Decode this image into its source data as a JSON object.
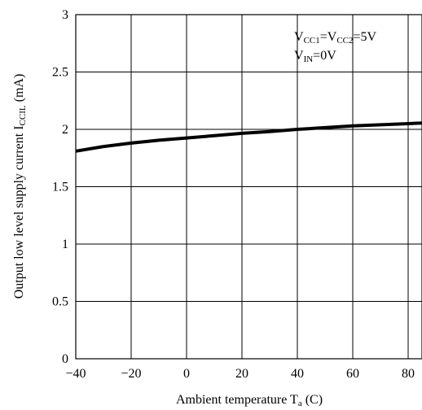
{
  "chart_data": {
    "type": "line",
    "title": "",
    "xlabel": {
      "text": "Ambient temperature T",
      "sub": "a",
      "tail": " (C)"
    },
    "ylabel": {
      "text": "Output low level supply current I",
      "sub": "CCIL",
      "tail": " (mA)"
    },
    "xlim": [
      -40,
      85
    ],
    "ylim": [
      0,
      3
    ],
    "grid": true,
    "x_ticks": [
      -40,
      -20,
      0,
      20,
      40,
      60,
      80
    ],
    "x_tick_labels": [
      "−40",
      "−20",
      "0",
      "20",
      "40",
      "60",
      "80"
    ],
    "y_ticks": [
      0,
      0.5,
      1,
      1.5,
      2,
      2.5,
      3
    ],
    "y_tick_labels": [
      "0",
      "0.5",
      "1",
      "1.5",
      "2",
      "2.5",
      "3"
    ],
    "series": [
      {
        "x": [
          -40,
          -30,
          -20,
          -10,
          0,
          10,
          20,
          30,
          40,
          50,
          60,
          70,
          80,
          85
        ],
        "y": [
          1.81,
          1.85,
          1.88,
          1.905,
          1.925,
          1.945,
          1.965,
          1.98,
          2.0,
          2.015,
          2.03,
          2.04,
          2.05,
          2.055
        ],
        "color": "#000000"
      }
    ],
    "annotations": [
      {
        "position": "top-right",
        "line1": [
          {
            "t": "V",
            "sub": false
          },
          {
            "t": "CC1",
            "sub": true
          },
          {
            "t": "=V",
            "sub": false
          },
          {
            "t": "CC2",
            "sub": true
          },
          {
            "t": "=5V",
            "sub": false
          }
        ],
        "line2": [
          {
            "t": "V",
            "sub": false
          },
          {
            "t": "IN",
            "sub": true
          },
          {
            "t": "=0V",
            "sub": false
          }
        ]
      }
    ]
  }
}
